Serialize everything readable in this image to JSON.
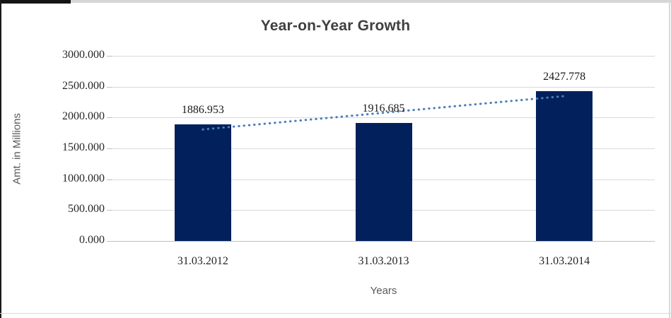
{
  "frame": {
    "background": "#ffffff",
    "outer_edge_dark": "#1a1a1a",
    "outer_edge_light": "#d9d9d9"
  },
  "chart_data": {
    "type": "bar",
    "title": "Year-on-Year Growth",
    "xlabel": "Years",
    "ylabel": "Amt. in Millions",
    "categories": [
      "31.03.2012",
      "31.03.2013",
      "31.03.2014"
    ],
    "values": [
      1886.953,
      1916.685,
      2427.778
    ],
    "data_labels": [
      "1886.953",
      "1916.685",
      "2427.778"
    ],
    "ylim": [
      0,
      3000
    ],
    "y_ticks": [
      {
        "value": 0,
        "label": "0.000"
      },
      {
        "value": 500,
        "label": "500.000"
      },
      {
        "value": 1000,
        "label": "1000.000"
      },
      {
        "value": 1500,
        "label": "1500.000"
      },
      {
        "value": 2000,
        "label": "2000.000"
      },
      {
        "value": 2500,
        "label": "2500.000"
      },
      {
        "value": 3000,
        "label": "3000.000"
      }
    ],
    "grid": true,
    "legend": "none",
    "bar_color": "#02215c",
    "gridline_color": "#d9d9d9",
    "axis_line_color": "#bfbfbf",
    "trendline": {
      "type": "linear",
      "style": "dotted",
      "color": "#4a7ebb",
      "start_value": 1806.7,
      "end_value": 2347.6
    }
  }
}
